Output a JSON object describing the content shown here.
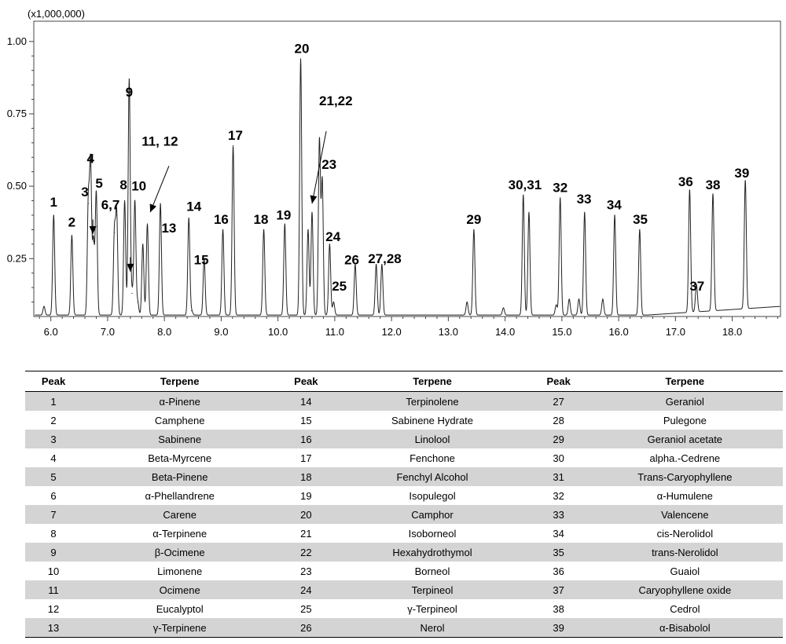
{
  "chart_data": {
    "type": "line",
    "scale_label": "(x1,000,000)",
    "xlabel": "",
    "ylabel": "",
    "xlim": [
      5.7,
      18.85
    ],
    "ylim": [
      0.05,
      1.07
    ],
    "x_ticks": [
      6.0,
      7.0,
      8.0,
      9.0,
      10.0,
      11.0,
      12.0,
      13.0,
      14.0,
      15.0,
      16.0,
      17.0,
      18.0
    ],
    "x_tick_labels": [
      "6.0",
      "7.0",
      "8.0",
      "9.0",
      "10.0",
      "11.0",
      "12.0",
      "13.0",
      "14.0",
      "15.0",
      "16.0",
      "17.0",
      "18.0"
    ],
    "y_ticks": [
      0.25,
      0.5,
      0.75,
      1.0
    ],
    "y_tick_labels": [
      "0.25",
      "0.50",
      "0.75",
      "1.00"
    ],
    "grid": false,
    "line_color": "#222222",
    "baseline": 0.055,
    "peaks": [
      {
        "x": 5.88,
        "y": 0.085
      },
      {
        "x": 6.05,
        "y": 0.4
      },
      {
        "x": 6.37,
        "y": 0.33
      },
      {
        "x": 6.66,
        "y": 0.44
      },
      {
        "x": 6.7,
        "y": 0.57
      },
      {
        "x": 6.75,
        "y": 0.31
      },
      {
        "x": 6.8,
        "y": 0.48
      },
      {
        "x": 7.12,
        "y": 0.34
      },
      {
        "x": 7.16,
        "y": 0.4
      },
      {
        "x": 7.3,
        "y": 0.45
      },
      {
        "x": 7.38,
        "y": 0.87
      },
      {
        "x": 7.43,
        "y": 0.13
      },
      {
        "x": 7.48,
        "y": 0.45
      },
      {
        "x": 7.53,
        "y": 0.1
      },
      {
        "x": 7.62,
        "y": 0.3
      },
      {
        "x": 7.7,
        "y": 0.37
      },
      {
        "x": 7.93,
        "y": 0.44
      },
      {
        "x": 8.43,
        "y": 0.39
      },
      {
        "x": 8.48,
        "y": 0.07
      },
      {
        "x": 8.7,
        "y": 0.25
      },
      {
        "x": 9.03,
        "y": 0.35
      },
      {
        "x": 9.21,
        "y": 0.64
      },
      {
        "x": 9.75,
        "y": 0.35
      },
      {
        "x": 10.12,
        "y": 0.37
      },
      {
        "x": 10.4,
        "y": 0.94
      },
      {
        "x": 10.53,
        "y": 0.35
      },
      {
        "x": 10.6,
        "y": 0.41
      },
      {
        "x": 10.73,
        "y": 0.66
      },
      {
        "x": 10.78,
        "y": 0.52
      },
      {
        "x": 10.91,
        "y": 0.3
      },
      {
        "x": 10.98,
        "y": 0.1
      },
      {
        "x": 11.36,
        "y": 0.23
      },
      {
        "x": 11.73,
        "y": 0.23
      },
      {
        "x": 11.83,
        "y": 0.23
      },
      {
        "x": 13.33,
        "y": 0.1
      },
      {
        "x": 13.45,
        "y": 0.35
      },
      {
        "x": 13.97,
        "y": 0.08
      },
      {
        "x": 14.32,
        "y": 0.47
      },
      {
        "x": 14.42,
        "y": 0.41
      },
      {
        "x": 14.9,
        "y": 0.09
      },
      {
        "x": 14.97,
        "y": 0.46
      },
      {
        "x": 15.13,
        "y": 0.11
      },
      {
        "x": 15.3,
        "y": 0.11
      },
      {
        "x": 15.4,
        "y": 0.41
      },
      {
        "x": 15.72,
        "y": 0.11
      },
      {
        "x": 15.93,
        "y": 0.4
      },
      {
        "x": 16.37,
        "y": 0.35
      },
      {
        "x": 17.25,
        "y": 0.48
      },
      {
        "x": 17.37,
        "y": 0.15
      },
      {
        "x": 17.66,
        "y": 0.46
      },
      {
        "x": 18.23,
        "y": 0.5
      }
    ],
    "peak_labels": [
      {
        "text": "1",
        "x": 6.05,
        "y": 0.43
      },
      {
        "text": "2",
        "x": 6.37,
        "y": 0.36
      },
      {
        "text": "3",
        "x": 6.6,
        "y": 0.465
      },
      {
        "text": "4",
        "x": 6.7,
        "y": 0.58
      },
      {
        "text": "5",
        "x": 6.85,
        "y": 0.495
      },
      {
        "text": "6,7",
        "x": 7.05,
        "y": 0.42
      },
      {
        "text": "8",
        "x": 7.28,
        "y": 0.49
      },
      {
        "text": "9",
        "x": 7.38,
        "y": 0.81
      },
      {
        "text": "10",
        "x": 7.55,
        "y": 0.485
      },
      {
        "text": "11, 12",
        "x": 7.92,
        "y": 0.64
      },
      {
        "text": "13",
        "x": 8.08,
        "y": 0.34
      },
      {
        "text": "14",
        "x": 8.52,
        "y": 0.415
      },
      {
        "text": "15",
        "x": 8.65,
        "y": 0.23
      },
      {
        "text": "16",
        "x": 9.0,
        "y": 0.37
      },
      {
        "text": "17",
        "x": 9.25,
        "y": 0.66
      },
      {
        "text": "18",
        "x": 9.7,
        "y": 0.37
      },
      {
        "text": "19",
        "x": 10.1,
        "y": 0.385
      },
      {
        "text": "20",
        "x": 10.42,
        "y": 0.96
      },
      {
        "text": "21,22",
        "x": 11.02,
        "y": 0.78
      },
      {
        "text": "23",
        "x": 10.9,
        "y": 0.56
      },
      {
        "text": "24",
        "x": 10.97,
        "y": 0.31
      },
      {
        "text": "25",
        "x": 11.08,
        "y": 0.14
      },
      {
        "text": "26",
        "x": 11.3,
        "y": 0.23
      },
      {
        "text": "27,28",
        "x": 11.88,
        "y": 0.235
      },
      {
        "text": "29",
        "x": 13.45,
        "y": 0.37
      },
      {
        "text": "30,31",
        "x": 14.35,
        "y": 0.49
      },
      {
        "text": "32",
        "x": 14.97,
        "y": 0.48
      },
      {
        "text": "33",
        "x": 15.39,
        "y": 0.44
      },
      {
        "text": "34",
        "x": 15.92,
        "y": 0.42
      },
      {
        "text": "35",
        "x": 16.38,
        "y": 0.37
      },
      {
        "text": "36",
        "x": 17.18,
        "y": 0.5
      },
      {
        "text": "37",
        "x": 17.38,
        "y": 0.14
      },
      {
        "text": "38",
        "x": 17.66,
        "y": 0.49
      },
      {
        "text": "39",
        "x": 18.17,
        "y": 0.53
      }
    ],
    "arrows": [
      {
        "from": [
          6.74,
          0.385
        ],
        "to": [
          6.74,
          0.335
        ]
      },
      {
        "from": [
          7.4,
          0.255
        ],
        "to": [
          7.4,
          0.205
        ]
      },
      {
        "from": [
          8.08,
          0.57
        ],
        "to": [
          7.75,
          0.41
        ]
      },
      {
        "from": [
          10.85,
          0.69
        ],
        "to": [
          10.6,
          0.44
        ]
      }
    ]
  },
  "table": {
    "headers": [
      "Peak",
      "Terpene",
      "Peak",
      "Terpene",
      "Peak",
      "Terpene"
    ],
    "rows": [
      [
        "1",
        "α-Pinene",
        "14",
        "Terpinolene",
        "27",
        "Geraniol"
      ],
      [
        "2",
        "Camphene",
        "15",
        "Sabinene Hydrate",
        "28",
        "Pulegone"
      ],
      [
        "3",
        "Sabinene",
        "16",
        "Linolool",
        "29",
        "Geraniol acetate"
      ],
      [
        "4",
        "Beta-Myrcene",
        "17",
        "Fenchone",
        "30",
        "alpha.-Cedrene"
      ],
      [
        "5",
        "Beta-Pinene",
        "18",
        "Fenchyl Alcohol",
        "31",
        "Trans-Caryophyllene"
      ],
      [
        "6",
        "α-Phellandrene",
        "19",
        "Isopulegol",
        "32",
        "α-Humulene"
      ],
      [
        "7",
        "Carene",
        "20",
        "Camphor",
        "33",
        "Valencene"
      ],
      [
        "8",
        "α-Terpinene",
        "21",
        "Isoborneol",
        "34",
        "cis-Nerolidol"
      ],
      [
        "9",
        "β-Ocimene",
        "22",
        "Hexahydrothymol",
        "35",
        "trans-Nerolidol"
      ],
      [
        "10",
        "Limonene",
        "23",
        "Borneol",
        "36",
        "Guaiol"
      ],
      [
        "11",
        "Ocimene",
        "24",
        "Terpineol",
        "37",
        "Caryophyllene oxide"
      ],
      [
        "12",
        "Eucalyptol",
        "25",
        "γ-Terpineol",
        "38",
        "Cedrol"
      ],
      [
        "13",
        "γ-Terpinene",
        "26",
        "Nerol",
        "39",
        "α-Bisabolol"
      ]
    ]
  }
}
